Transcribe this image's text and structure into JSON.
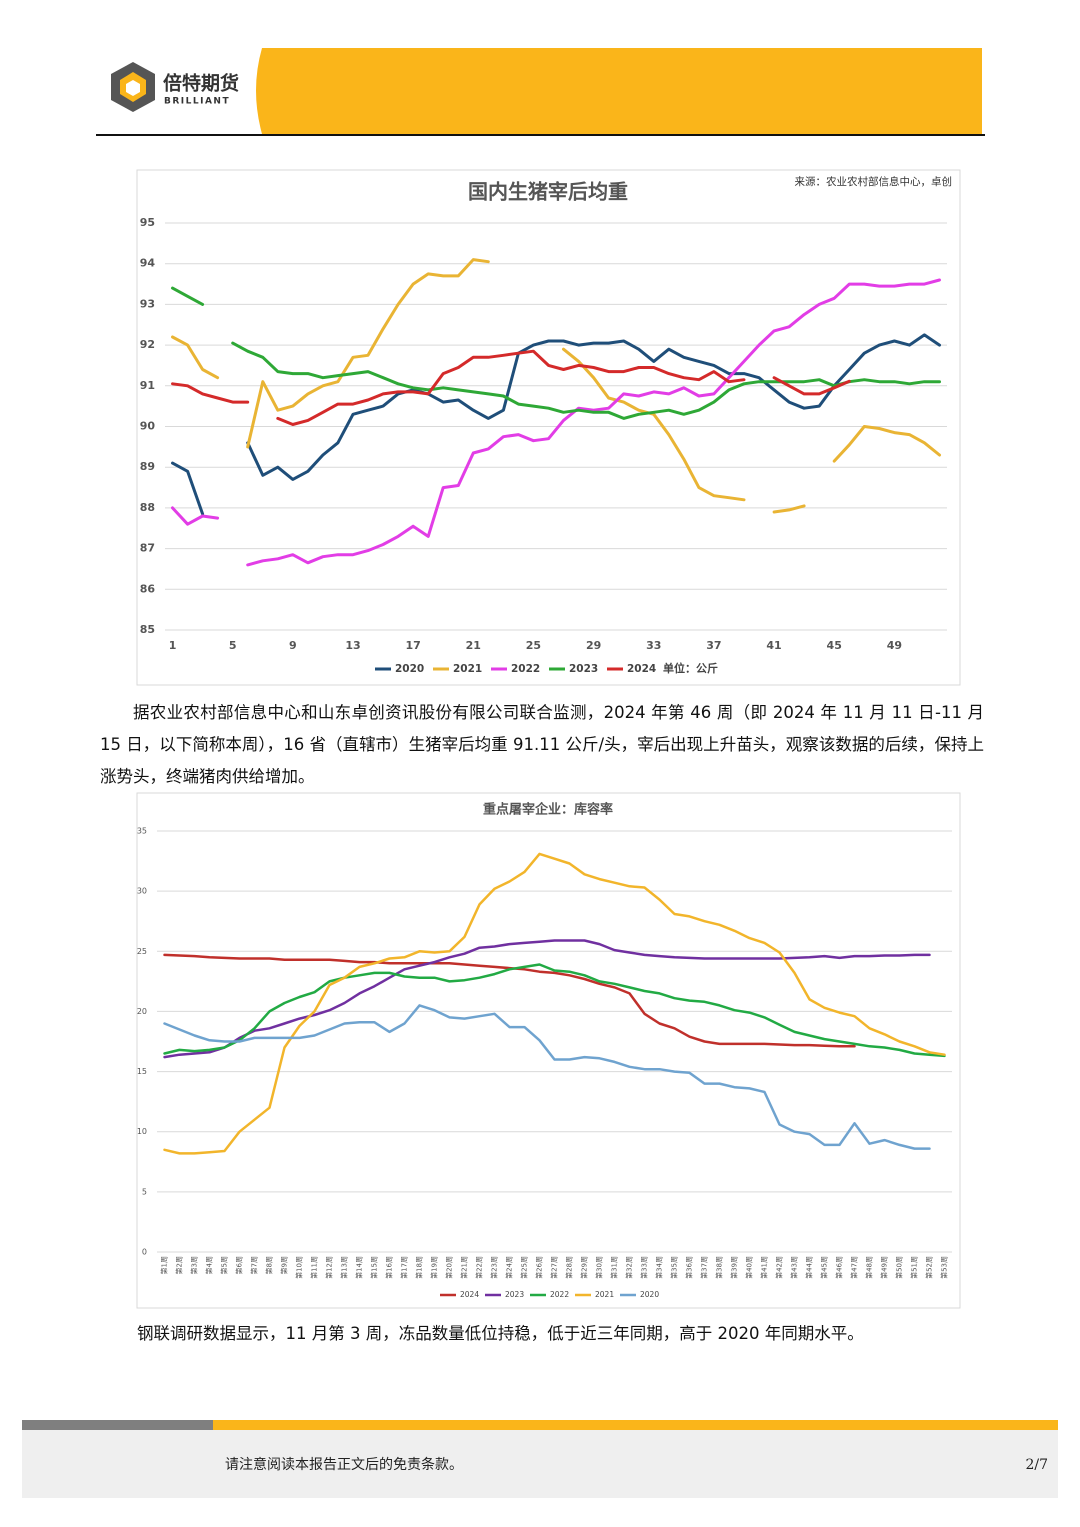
{
  "header": {
    "brand": "倍特期货",
    "brand_en": "BRILLIANT"
  },
  "chart_data": [
    {
      "type": "line",
      "title": "国内生猪宰后均重",
      "source": "来源：农业农村部信息中心，卓创",
      "unit_label": "单位：公斤",
      "categories": [
        1,
        null,
        null,
        null,
        5,
        null,
        null,
        null,
        9,
        null,
        null,
        null,
        13,
        null,
        null,
        null,
        17,
        null,
        null,
        null,
        21,
        null,
        null,
        null,
        25,
        null,
        null,
        null,
        29,
        null,
        null,
        null,
        33,
        null,
        null,
        null,
        37,
        null,
        null,
        null,
        41,
        null,
        null,
        null,
        45,
        null,
        null,
        null,
        49,
        null,
        null,
        null
      ],
      "ylim": [
        85,
        95
      ],
      "yticks": [
        85,
        86,
        87,
        88,
        89,
        90,
        91,
        92,
        93,
        94,
        95
      ],
      "grid": true,
      "series": [
        {
          "name": "2020",
          "color": "#1f4e79",
          "values": [
            89.1,
            88.9,
            87.85,
            null,
            null,
            89.6,
            88.8,
            89.0,
            88.7,
            88.9,
            89.3,
            89.6,
            90.3,
            90.4,
            90.5,
            90.8,
            90.9,
            90.8,
            90.6,
            90.65,
            90.4,
            90.2,
            90.4,
            91.8,
            92.0,
            92.1,
            92.1,
            92.0,
            92.05,
            92.05,
            92.1,
            91.9,
            91.6,
            91.9,
            91.7,
            91.6,
            91.5,
            91.3,
            91.3,
            91.2,
            90.9,
            90.6,
            90.45,
            90.5,
            91.0,
            91.4,
            91.8,
            92.0,
            92.1,
            92.0,
            92.25,
            92.0
          ]
        },
        {
          "name": "2021",
          "color": "#e9b434",
          "values": [
            92.2,
            92.0,
            91.4,
            91.2,
            null,
            89.5,
            91.1,
            90.4,
            90.5,
            90.8,
            91.0,
            91.1,
            91.7,
            91.75,
            92.4,
            93.0,
            93.5,
            93.75,
            93.7,
            93.7,
            94.1,
            94.05,
            null,
            null,
            null,
            null,
            91.9,
            91.6,
            91.2,
            90.7,
            90.6,
            90.4,
            90.3,
            89.8,
            89.2,
            88.5,
            88.3,
            88.25,
            88.2,
            null,
            87.9,
            87.95,
            88.05,
            null,
            89.15,
            89.55,
            90.0,
            89.95,
            89.85,
            89.8,
            89.6,
            89.3
          ]
        },
        {
          "name": "2022",
          "color": "#e23de6",
          "values": [
            88.0,
            87.6,
            87.8,
            87.75,
            null,
            86.6,
            86.7,
            86.75,
            86.85,
            86.65,
            86.8,
            86.85,
            86.85,
            86.95,
            87.1,
            87.3,
            87.55,
            87.3,
            88.5,
            88.55,
            89.35,
            89.45,
            89.75,
            89.8,
            89.65,
            89.7,
            90.15,
            90.45,
            90.4,
            90.45,
            90.8,
            90.75,
            90.85,
            90.8,
            90.95,
            90.75,
            90.8,
            91.2,
            91.6,
            92.0,
            92.35,
            92.45,
            92.75,
            93.0,
            93.15,
            93.5,
            93.5,
            93.45,
            93.45,
            93.5,
            93.5,
            93.6
          ]
        },
        {
          "name": "2023",
          "color": "#2ea836",
          "values": [
            93.4,
            93.2,
            93.0,
            null,
            92.05,
            91.85,
            91.7,
            91.35,
            91.3,
            91.3,
            91.2,
            91.25,
            91.3,
            91.35,
            91.2,
            91.05,
            90.95,
            90.9,
            90.95,
            90.9,
            90.85,
            90.8,
            90.75,
            90.55,
            90.5,
            90.45,
            90.35,
            90.4,
            90.35,
            90.35,
            90.2,
            90.3,
            90.35,
            90.4,
            90.3,
            90.4,
            90.6,
            90.9,
            91.05,
            91.1,
            91.1,
            91.1,
            91.1,
            91.15,
            91.0,
            91.1,
            91.15,
            91.1,
            91.1,
            91.05,
            91.1,
            91.1
          ]
        },
        {
          "name": "2024",
          "color": "#d42a2a",
          "values": [
            91.05,
            91.0,
            90.8,
            90.7,
            90.6,
            90.6,
            null,
            90.2,
            90.05,
            90.15,
            90.35,
            90.55,
            90.55,
            90.65,
            90.8,
            90.85,
            90.85,
            90.8,
            91.3,
            91.45,
            91.7,
            91.7,
            91.75,
            91.8,
            91.85,
            91.5,
            91.4,
            91.5,
            91.45,
            91.35,
            91.35,
            91.45,
            91.45,
            91.3,
            91.2,
            91.15,
            91.35,
            91.1,
            91.15,
            null,
            91.2,
            91.0,
            90.8,
            90.8,
            90.95,
            91.11,
            null,
            null,
            null,
            null,
            null,
            null
          ]
        }
      ]
    },
    {
      "type": "line",
      "title": "重点屠宰企业：库容率",
      "categories": [
        "第1周",
        "第2周",
        "第3周",
        "第4周",
        "第5周",
        "第6周",
        "第7周",
        "第8周",
        "第9周",
        "第10周",
        "第11周",
        "第12周",
        "第13周",
        "第14周",
        "第15周",
        "第16周",
        "第17周",
        "第18周",
        "第19周",
        "第20周",
        "第21周",
        "第22周",
        "第23周",
        "第24周",
        "第25周",
        "第26周",
        "第27周",
        "第28周",
        "第29周",
        "第30周",
        "第31周",
        "第32周",
        "第33周",
        "第34周",
        "第35周",
        "第36周",
        "第37周",
        "第38周",
        "第39周",
        "第40周",
        "第41周",
        "第42周",
        "第43周",
        "第44周",
        "第45周",
        "第46周",
        "第47周",
        "第48周",
        "第49周",
        "第50周",
        "第51周",
        "第52周",
        "第53周"
      ],
      "ylim": [
        0,
        35
      ],
      "yticks": [
        0,
        5,
        10,
        15,
        20,
        25,
        30,
        35
      ],
      "grid": true,
      "series": [
        {
          "name": "2024",
          "color": "#c0302b",
          "values": [
            24.7,
            24.65,
            24.6,
            24.5,
            24.45,
            24.4,
            24.4,
            24.4,
            24.3,
            24.3,
            24.3,
            24.3,
            24.2,
            24.1,
            24.1,
            24.0,
            24.0,
            24.0,
            24.0,
            24.0,
            23.9,
            23.8,
            23.7,
            23.6,
            23.5,
            23.3,
            23.2,
            23.0,
            22.7,
            22.3,
            22.0,
            21.5,
            19.8,
            19.0,
            18.6,
            17.9,
            17.5,
            17.3,
            17.3,
            17.3,
            17.3,
            17.25,
            17.2,
            17.2,
            17.15,
            17.1,
            17.1,
            null,
            null,
            null,
            null,
            null,
            null
          ]
        },
        {
          "name": "2023",
          "color": "#7030a0",
          "values": [
            16.2,
            16.4,
            16.5,
            16.6,
            17.0,
            17.8,
            18.4,
            18.6,
            19.0,
            19.4,
            19.7,
            20.1,
            20.7,
            21.5,
            22.1,
            22.8,
            23.5,
            23.8,
            24.1,
            24.5,
            24.8,
            25.3,
            25.4,
            25.6,
            25.7,
            25.8,
            25.9,
            25.9,
            25.9,
            25.6,
            25.1,
            24.9,
            24.7,
            24.6,
            24.5,
            24.45,
            24.4,
            24.4,
            24.4,
            24.4,
            24.4,
            24.4,
            24.45,
            24.5,
            24.6,
            24.45,
            24.6,
            24.6,
            24.65,
            24.65,
            24.7,
            24.7,
            null
          ]
        },
        {
          "name": "2022",
          "color": "#22aa44",
          "values": [
            16.5,
            16.8,
            16.7,
            16.8,
            17.0,
            17.6,
            18.6,
            20.0,
            20.7,
            21.2,
            21.6,
            22.5,
            22.8,
            23.0,
            23.2,
            23.2,
            22.9,
            22.8,
            22.8,
            22.5,
            22.6,
            22.8,
            23.1,
            23.5,
            23.7,
            23.9,
            23.4,
            23.3,
            23.0,
            22.5,
            22.3,
            22.0,
            21.7,
            21.5,
            21.1,
            20.9,
            20.8,
            20.5,
            20.1,
            19.9,
            19.5,
            18.9,
            18.3,
            18.0,
            17.7,
            17.5,
            17.3,
            17.1,
            17.0,
            16.8,
            16.5,
            16.4,
            16.3
          ]
        },
        {
          "name": "2021",
          "color": "#f2b52b",
          "values": [
            8.5,
            8.2,
            8.2,
            8.3,
            8.4,
            10.0,
            11.0,
            12.0,
            17.0,
            18.8,
            20.0,
            22.2,
            22.8,
            23.7,
            24.0,
            24.4,
            24.5,
            25.0,
            24.9,
            25.0,
            26.2,
            28.9,
            30.2,
            30.8,
            31.6,
            33.1,
            32.7,
            32.3,
            31.4,
            31.0,
            30.7,
            30.4,
            30.3,
            29.3,
            28.1,
            27.9,
            27.5,
            27.2,
            26.7,
            26.1,
            25.7,
            24.9,
            23.2,
            21.0,
            20.3,
            19.9,
            19.6,
            18.6,
            18.1,
            17.5,
            17.1,
            16.6,
            16.4
          ]
        },
        {
          "name": "2020",
          "color": "#6fa3cf",
          "values": [
            19.0,
            18.5,
            18.0,
            17.6,
            17.5,
            17.5,
            17.8,
            17.8,
            17.8,
            17.8,
            18.0,
            18.5,
            19.0,
            19.1,
            19.1,
            18.3,
            19.0,
            20.5,
            20.1,
            19.5,
            19.4,
            19.6,
            19.8,
            18.7,
            18.7,
            17.6,
            16.0,
            16.0,
            16.2,
            16.1,
            15.8,
            15.4,
            15.2,
            15.2,
            15.0,
            14.9,
            14.0,
            14.0,
            13.7,
            13.6,
            13.3,
            10.6,
            10.0,
            9.8,
            8.9,
            8.9,
            10.7,
            9.0,
            9.3,
            8.9,
            8.6,
            8.6,
            null
          ]
        }
      ]
    }
  ],
  "paragraphs": [
    "据农业农村部信息中心和山东卓创资讯股份有限公司联合监测，2024 年第 46 周（即 2024 年 11 月 11 日-11 月 15 日，以下简称本周），16 省（直辖市）生猪宰后均重 91.11 公斤/头，宰后出现上升苗头，观察该数据的后续，保持上涨势头，终端猪肉供给增加。",
    "钢联调研数据显示，11 月第 3 周，冻品数量低位持稳，低于近三年同期，高于 2020 年同期水平。"
  ],
  "footer": {
    "disclaimer": "请注意阅读本报告正文后的免责条款。",
    "page": "2/7"
  }
}
